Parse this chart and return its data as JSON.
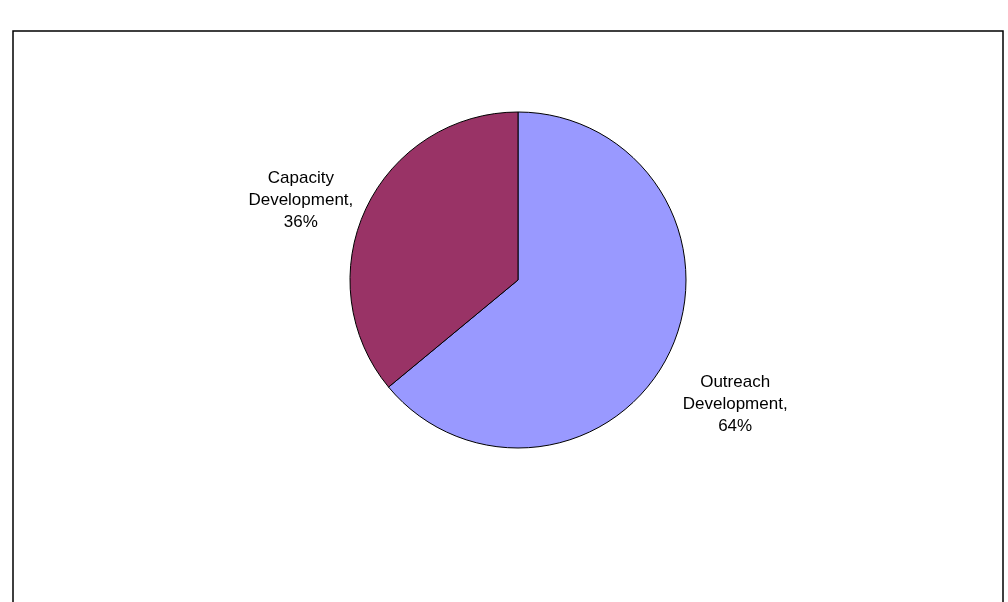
{
  "chart_data": {
    "type": "pie",
    "categories": [
      "Outreach Development",
      "Capacity Development"
    ],
    "values": [
      64,
      36
    ],
    "value_labels": [
      ", 64%",
      ", 36%"
    ],
    "colors": [
      "#9999ff",
      "#993366"
    ],
    "legend": false
  }
}
